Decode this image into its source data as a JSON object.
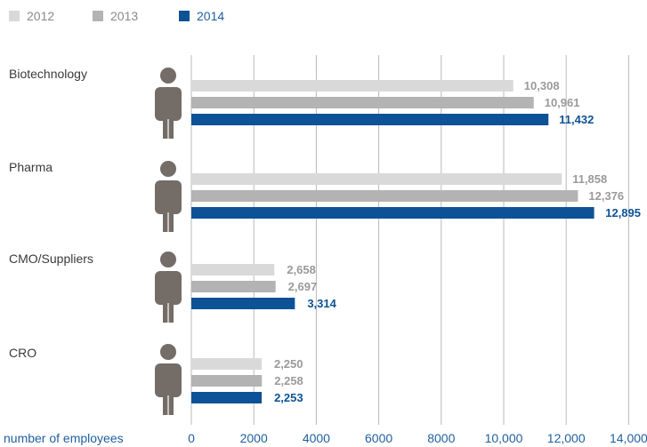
{
  "chart_data": {
    "type": "bar",
    "orientation": "horizontal",
    "categories": [
      "Biotechnology",
      "Pharma",
      "CMO/Suppliers",
      "CRO"
    ],
    "series": [
      {
        "name": "2012",
        "color": "#d9d9d9",
        "label_color": "#9a9a9a",
        "values": [
          10308,
          11858,
          2658,
          2250
        ]
      },
      {
        "name": "2013",
        "color": "#b3b3b3",
        "label_color": "#9a9a9a",
        "values": [
          10961,
          12376,
          2697,
          2258
        ]
      },
      {
        "name": "2014",
        "color": "#0d5296",
        "label_color": "#0d5296",
        "values": [
          11432,
          12895,
          3314,
          2253
        ]
      }
    ],
    "value_labels": [
      [
        "10,308",
        "11,858",
        "2,658",
        "2,250"
      ],
      [
        "10,961",
        "12,376",
        "2,697",
        "2,258"
      ],
      [
        "11,432",
        "12,895",
        "3,314",
        "2,253"
      ]
    ],
    "xlabel": "number of employees",
    "xticks": [
      0,
      2000,
      4000,
      6000,
      8000,
      10000,
      12000,
      14000
    ],
    "xtick_labels": [
      "0",
      "2000",
      "4000",
      "6000",
      "8000",
      "10,000",
      "12,000",
      "14,000"
    ],
    "xlim": [
      0,
      14000
    ],
    "grid": "vertical",
    "legend_position": "top-left",
    "icon": "person-icon",
    "icon_color": "#736c67",
    "grid_color": "#b8b8b8",
    "tick_color": "#1f5f9f"
  }
}
